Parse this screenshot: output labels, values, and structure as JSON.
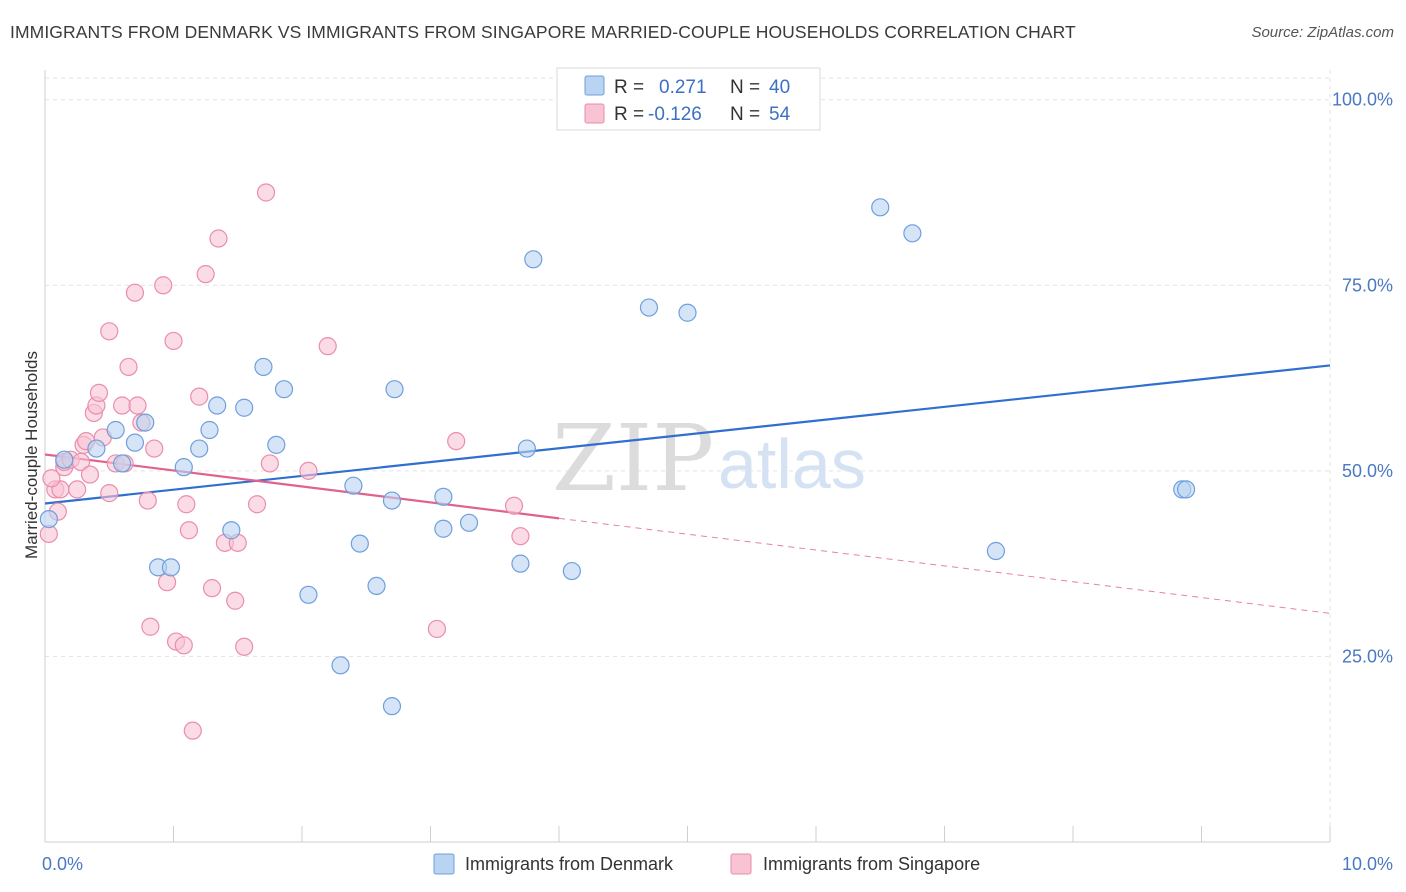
{
  "title": "IMMIGRANTS FROM DENMARK VS IMMIGRANTS FROM SINGAPORE MARRIED-COUPLE HOUSEHOLDS CORRELATION CHART",
  "source": "Source: ZipAtlas.com",
  "watermark": {
    "zip": "ZIP",
    "atlas": "atlas"
  },
  "colors": {
    "denmark_fill": "#b9d3f2",
    "denmark_stroke": "#6f9fdc",
    "denmark_line": "#2f6fd0",
    "singapore_fill": "#f8c3d3",
    "singapore_stroke": "#ea8eab",
    "singapore_line": "#e0628f",
    "tick": "#4a78c2",
    "grid": "#e3e3e3"
  },
  "legend": {
    "rows": [
      {
        "r_label": "R =",
        "r_value": "0.271",
        "n_label": "N =",
        "n_value": "40"
      },
      {
        "r_label": "R =",
        "r_value": "-0.126",
        "n_label": "N =",
        "n_value": "54"
      }
    ]
  },
  "chart_data": {
    "type": "scatter",
    "title": "IMMIGRANTS FROM DENMARK VS IMMIGRANTS FROM SINGAPORE MARRIED-COUPLE HOUSEHOLDS CORRELATION CHART",
    "xlabel": "",
    "ylabel": "Married-couple Households",
    "xlim": [
      0,
      10
    ],
    "ylim": [
      0,
      104
    ],
    "x_ticks": [
      {
        "value": 0,
        "label": "0.0%"
      },
      {
        "value": 10,
        "label": "10.0%"
      }
    ],
    "y_ticks": [
      {
        "value": 25,
        "label": "25.0%"
      },
      {
        "value": 50,
        "label": "50.0%"
      },
      {
        "value": 75,
        "label": "75.0%"
      },
      {
        "value": 100,
        "label": "100.0%"
      }
    ],
    "grid": true,
    "legend_position": "top-center",
    "series": [
      {
        "name": "Immigrants from Denmark",
        "r": 0.271,
        "n": 40,
        "trend": {
          "x0": 0,
          "y0": 45.6,
          "x1": 10,
          "y1": 64.2
        },
        "points": [
          [
            0.03,
            43.5
          ],
          [
            0.15,
            51.5
          ],
          [
            0.4,
            53.0
          ],
          [
            0.55,
            55.5
          ],
          [
            0.6,
            51.0
          ],
          [
            0.7,
            53.8
          ],
          [
            0.78,
            56.5
          ],
          [
            0.88,
            37.0
          ],
          [
            0.98,
            37.0
          ],
          [
            1.08,
            50.5
          ],
          [
            1.2,
            53.0
          ],
          [
            1.28,
            55.5
          ],
          [
            1.34,
            58.8
          ],
          [
            1.45,
            42.0
          ],
          [
            1.55,
            58.5
          ],
          [
            1.7,
            64.0
          ],
          [
            1.8,
            53.5
          ],
          [
            1.86,
            61.0
          ],
          [
            2.05,
            33.3
          ],
          [
            2.3,
            23.8
          ],
          [
            2.4,
            48.0
          ],
          [
            2.45,
            40.2
          ],
          [
            2.58,
            34.5
          ],
          [
            2.7,
            46.0
          ],
          [
            2.7,
            18.3
          ],
          [
            2.72,
            61.0
          ],
          [
            3.1,
            42.2
          ],
          [
            3.1,
            46.5
          ],
          [
            3.3,
            43.0
          ],
          [
            3.7,
            37.5
          ],
          [
            3.75,
            53.0
          ],
          [
            3.8,
            78.5
          ],
          [
            4.1,
            36.5
          ],
          [
            4.7,
            72.0
          ],
          [
            5.0,
            71.3
          ],
          [
            6.5,
            85.5
          ],
          [
            6.75,
            82.0
          ],
          [
            7.4,
            39.2
          ],
          [
            8.85,
            47.5
          ],
          [
            8.88,
            47.5
          ]
        ]
      },
      {
        "name": "Immigrants from Singapore",
        "r": -0.126,
        "n": 54,
        "trend": {
          "x0": 0,
          "y0": 52.2,
          "x1": 4,
          "y1": 43.6
        },
        "trend_extension": {
          "x0": 4,
          "y0": 43.6,
          "x1": 10,
          "y1": 30.8
        },
        "points": [
          [
            0.03,
            41.5
          ],
          [
            0.08,
            47.5
          ],
          [
            0.12,
            47.5
          ],
          [
            0.15,
            50.5
          ],
          [
            0.15,
            51.2
          ],
          [
            0.2,
            51.5
          ],
          [
            0.25,
            47.5
          ],
          [
            0.28,
            51.2
          ],
          [
            0.3,
            53.5
          ],
          [
            0.32,
            54.0
          ],
          [
            0.35,
            49.5
          ],
          [
            0.38,
            57.8
          ],
          [
            0.4,
            58.8
          ],
          [
            0.42,
            60.5
          ],
          [
            0.45,
            54.5
          ],
          [
            0.5,
            68.8
          ],
          [
            0.5,
            47.0
          ],
          [
            0.55,
            51.0
          ],
          [
            0.6,
            58.8
          ],
          [
            0.62,
            51.0
          ],
          [
            0.65,
            64.0
          ],
          [
            0.7,
            74.0
          ],
          [
            0.72,
            58.8
          ],
          [
            0.75,
            56.5
          ],
          [
            0.8,
            46.0
          ],
          [
            0.82,
            29.0
          ],
          [
            0.85,
            53.0
          ],
          [
            0.92,
            75.0
          ],
          [
            0.95,
            35.0
          ],
          [
            1.0,
            67.5
          ],
          [
            1.02,
            27.0
          ],
          [
            1.08,
            26.5
          ],
          [
            1.1,
            45.5
          ],
          [
            1.12,
            42.0
          ],
          [
            1.15,
            15.0
          ],
          [
            1.2,
            60.0
          ],
          [
            1.25,
            76.5
          ],
          [
            1.3,
            34.2
          ],
          [
            1.35,
            81.3
          ],
          [
            1.4,
            40.3
          ],
          [
            1.48,
            32.5
          ],
          [
            1.5,
            40.3
          ],
          [
            1.55,
            26.3
          ],
          [
            1.65,
            45.5
          ],
          [
            1.72,
            87.5
          ],
          [
            1.75,
            51.0
          ],
          [
            2.05,
            50.0
          ],
          [
            2.2,
            66.8
          ],
          [
            3.05,
            28.7
          ],
          [
            3.2,
            54.0
          ],
          [
            3.65,
            45.3
          ],
          [
            3.7,
            41.2
          ],
          [
            0.05,
            49.0
          ],
          [
            0.1,
            44.5
          ]
        ]
      }
    ]
  }
}
